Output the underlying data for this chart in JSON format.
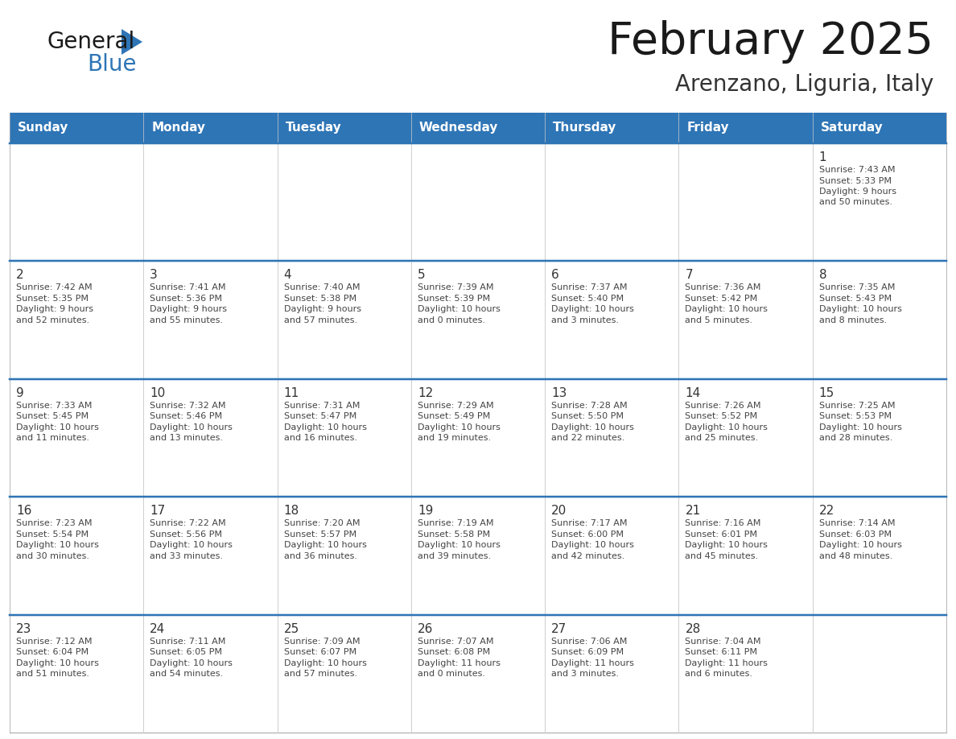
{
  "title": "February 2025",
  "subtitle": "Arenzano, Liguria, Italy",
  "header_bg": "#2E75B6",
  "header_text_color": "#FFFFFF",
  "border_color": "#2E75B6",
  "row_border_color": "#4472a8",
  "cell_border_color": "#BBBBBB",
  "day_text_color": "#333333",
  "info_text_color": "#444444",
  "days_of_week": [
    "Sunday",
    "Monday",
    "Tuesday",
    "Wednesday",
    "Thursday",
    "Friday",
    "Saturday"
  ],
  "calendar": [
    [
      null,
      null,
      null,
      null,
      null,
      null,
      1
    ],
    [
      2,
      3,
      4,
      5,
      6,
      7,
      8
    ],
    [
      9,
      10,
      11,
      12,
      13,
      14,
      15
    ],
    [
      16,
      17,
      18,
      19,
      20,
      21,
      22
    ],
    [
      23,
      24,
      25,
      26,
      27,
      28,
      null
    ]
  ],
  "cell_data": {
    "1": {
      "sunrise": "7:43 AM",
      "sunset": "5:33 PM",
      "daylight_line1": "Daylight: 9 hours",
      "daylight_line2": "and 50 minutes."
    },
    "2": {
      "sunrise": "7:42 AM",
      "sunset": "5:35 PM",
      "daylight_line1": "Daylight: 9 hours",
      "daylight_line2": "and 52 minutes."
    },
    "3": {
      "sunrise": "7:41 AM",
      "sunset": "5:36 PM",
      "daylight_line1": "Daylight: 9 hours",
      "daylight_line2": "and 55 minutes."
    },
    "4": {
      "sunrise": "7:40 AM",
      "sunset": "5:38 PM",
      "daylight_line1": "Daylight: 9 hours",
      "daylight_line2": "and 57 minutes."
    },
    "5": {
      "sunrise": "7:39 AM",
      "sunset": "5:39 PM",
      "daylight_line1": "Daylight: 10 hours",
      "daylight_line2": "and 0 minutes."
    },
    "6": {
      "sunrise": "7:37 AM",
      "sunset": "5:40 PM",
      "daylight_line1": "Daylight: 10 hours",
      "daylight_line2": "and 3 minutes."
    },
    "7": {
      "sunrise": "7:36 AM",
      "sunset": "5:42 PM",
      "daylight_line1": "Daylight: 10 hours",
      "daylight_line2": "and 5 minutes."
    },
    "8": {
      "sunrise": "7:35 AM",
      "sunset": "5:43 PM",
      "daylight_line1": "Daylight: 10 hours",
      "daylight_line2": "and 8 minutes."
    },
    "9": {
      "sunrise": "7:33 AM",
      "sunset": "5:45 PM",
      "daylight_line1": "Daylight: 10 hours",
      "daylight_line2": "and 11 minutes."
    },
    "10": {
      "sunrise": "7:32 AM",
      "sunset": "5:46 PM",
      "daylight_line1": "Daylight: 10 hours",
      "daylight_line2": "and 13 minutes."
    },
    "11": {
      "sunrise": "7:31 AM",
      "sunset": "5:47 PM",
      "daylight_line1": "Daylight: 10 hours",
      "daylight_line2": "and 16 minutes."
    },
    "12": {
      "sunrise": "7:29 AM",
      "sunset": "5:49 PM",
      "daylight_line1": "Daylight: 10 hours",
      "daylight_line2": "and 19 minutes."
    },
    "13": {
      "sunrise": "7:28 AM",
      "sunset": "5:50 PM",
      "daylight_line1": "Daylight: 10 hours",
      "daylight_line2": "and 22 minutes."
    },
    "14": {
      "sunrise": "7:26 AM",
      "sunset": "5:52 PM",
      "daylight_line1": "Daylight: 10 hours",
      "daylight_line2": "and 25 minutes."
    },
    "15": {
      "sunrise": "7:25 AM",
      "sunset": "5:53 PM",
      "daylight_line1": "Daylight: 10 hours",
      "daylight_line2": "and 28 minutes."
    },
    "16": {
      "sunrise": "7:23 AM",
      "sunset": "5:54 PM",
      "daylight_line1": "Daylight: 10 hours",
      "daylight_line2": "and 30 minutes."
    },
    "17": {
      "sunrise": "7:22 AM",
      "sunset": "5:56 PM",
      "daylight_line1": "Daylight: 10 hours",
      "daylight_line2": "and 33 minutes."
    },
    "18": {
      "sunrise": "7:20 AM",
      "sunset": "5:57 PM",
      "daylight_line1": "Daylight: 10 hours",
      "daylight_line2": "and 36 minutes."
    },
    "19": {
      "sunrise": "7:19 AM",
      "sunset": "5:58 PM",
      "daylight_line1": "Daylight: 10 hours",
      "daylight_line2": "and 39 minutes."
    },
    "20": {
      "sunrise": "7:17 AM",
      "sunset": "6:00 PM",
      "daylight_line1": "Daylight: 10 hours",
      "daylight_line2": "and 42 minutes."
    },
    "21": {
      "sunrise": "7:16 AM",
      "sunset": "6:01 PM",
      "daylight_line1": "Daylight: 10 hours",
      "daylight_line2": "and 45 minutes."
    },
    "22": {
      "sunrise": "7:14 AM",
      "sunset": "6:03 PM",
      "daylight_line1": "Daylight: 10 hours",
      "daylight_line2": "and 48 minutes."
    },
    "23": {
      "sunrise": "7:12 AM",
      "sunset": "6:04 PM",
      "daylight_line1": "Daylight: 10 hours",
      "daylight_line2": "and 51 minutes."
    },
    "24": {
      "sunrise": "7:11 AM",
      "sunset": "6:05 PM",
      "daylight_line1": "Daylight: 10 hours",
      "daylight_line2": "and 54 minutes."
    },
    "25": {
      "sunrise": "7:09 AM",
      "sunset": "6:07 PM",
      "daylight_line1": "Daylight: 10 hours",
      "daylight_line2": "and 57 minutes."
    },
    "26": {
      "sunrise": "7:07 AM",
      "sunset": "6:08 PM",
      "daylight_line1": "Daylight: 11 hours",
      "daylight_line2": "and 0 minutes."
    },
    "27": {
      "sunrise": "7:06 AM",
      "sunset": "6:09 PM",
      "daylight_line1": "Daylight: 11 hours",
      "daylight_line2": "and 3 minutes."
    },
    "28": {
      "sunrise": "7:04 AM",
      "sunset": "6:11 PM",
      "daylight_line1": "Daylight: 11 hours",
      "daylight_line2": "and 6 minutes."
    }
  },
  "logo_color_general": "#1a1a1a",
  "logo_color_blue": "#2E75B6",
  "fig_width": 11.88,
  "fig_height": 9.18,
  "fig_dpi": 100
}
